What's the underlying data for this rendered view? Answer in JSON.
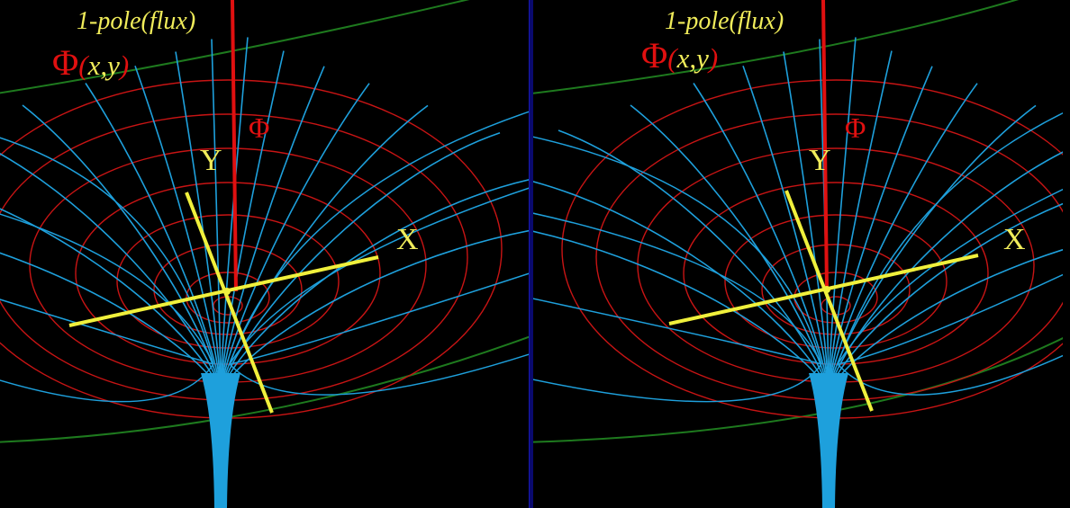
{
  "panels": [
    {
      "id": "left",
      "pole_label": "1-pole(flux)",
      "function_label": {
        "symbol": "Φ",
        "open": "(",
        "args": "x,y",
        "close": ")"
      },
      "axis_labels": {
        "phi": "Φ",
        "y": "Y",
        "x": "X"
      }
    },
    {
      "id": "right",
      "pole_label": "1-pole(flux)",
      "function_label": {
        "symbol": "Φ",
        "open": "(",
        "args": "x,y",
        "close": ")"
      },
      "axis_labels": {
        "phi": "Φ",
        "y": "Y",
        "x": "X"
      }
    }
  ],
  "colors": {
    "background": "#000000",
    "divider": "#0a0a6e",
    "equipotential": "#c81414",
    "field_lines": "#1ea0dc",
    "axes": "#f0f03c",
    "phi_axis": "#e01010",
    "boundary": "#1e7a1e"
  }
}
